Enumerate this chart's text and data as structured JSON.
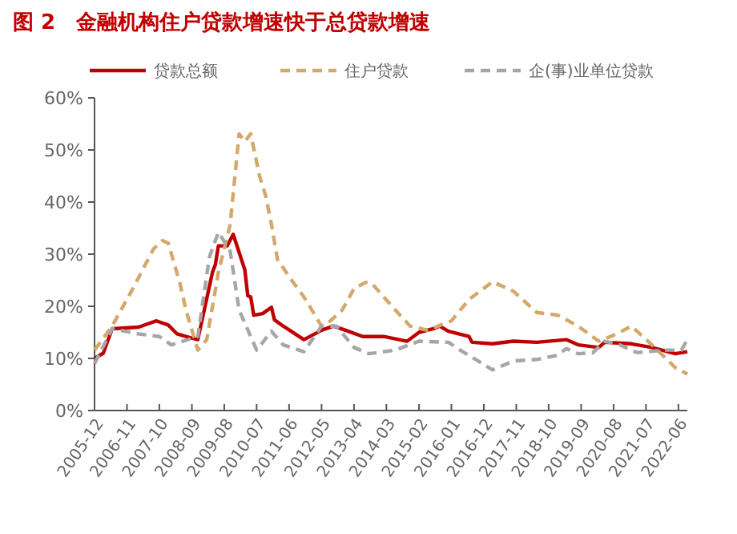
{
  "chart_data": {
    "type": "line",
    "title": "图 2　金融机构住户贷款增速快于总贷款增速",
    "xlim": [
      "2005-12",
      "2022-09"
    ],
    "xticks": [
      "2005-12",
      "2006-11",
      "2007-10",
      "2008-09",
      "2009-08",
      "2010-07",
      "2011-06",
      "2012-05",
      "2013-04",
      "2014-03",
      "2015-02",
      "2016-01",
      "2016-12",
      "2017-11",
      "2018-10",
      "2019-09",
      "2020-08",
      "2021-07",
      "2022-06"
    ],
    "ylim": [
      0,
      60
    ],
    "yticks": [
      {
        "value": 0,
        "label": "0%"
      },
      {
        "value": 10,
        "label": "10%"
      },
      {
        "value": 20,
        "label": "20%"
      },
      {
        "value": 30,
        "label": "30%"
      },
      {
        "value": 40,
        "label": "40%"
      },
      {
        "value": 50,
        "label": "50%"
      },
      {
        "value": 60,
        "label": "60%"
      }
    ],
    "grid": false,
    "legend": "top",
    "series": [
      {
        "name": "贷款总额",
        "color": "#c00000",
        "line_style": "solid",
        "x": [
          "2005-12",
          "2006-03",
          "2006-06",
          "2007-03",
          "2007-09",
          "2008-01",
          "2008-04",
          "2008-07",
          "2008-11",
          "2009-04",
          "2009-05",
          "2009-06",
          "2009-09",
          "2009-11",
          "2010-03",
          "2010-04",
          "2010-05",
          "2010-06",
          "2010-09",
          "2010-12",
          "2011-01",
          "2011-04",
          "2011-11",
          "2012-05",
          "2012-09",
          "2013-02",
          "2013-07",
          "2014-02",
          "2014-10",
          "2015-02",
          "2015-07",
          "2015-09",
          "2015-12",
          "2016-07",
          "2016-08",
          "2017-03",
          "2017-10",
          "2018-06",
          "2019-04",
          "2019-08",
          "2020-03",
          "2020-05",
          "2021-02",
          "2021-09",
          "2022-05",
          "2022-09"
        ],
        "values": [
          10,
          11,
          15.7,
          16,
          17.2,
          16.4,
          14.7,
          14.2,
          13.6,
          26.5,
          28,
          31.6,
          31.6,
          33.8,
          27,
          22,
          21.8,
          18.3,
          18.6,
          19.8,
          17.4,
          16.2,
          13.6,
          15.4,
          16.2,
          15.2,
          14.2,
          14.2,
          13.3,
          15,
          15.7,
          16.2,
          15.2,
          14.2,
          13.1,
          12.8,
          13.3,
          13.1,
          13.6,
          12.6,
          12.1,
          13.1,
          12.8,
          12.1,
          10.9,
          11.3
        ]
      },
      {
        "name": "住户贷款",
        "color": "#d4a86a",
        "line_style": "dashed",
        "x": [
          "2005-12",
          "2006-06",
          "2007-01",
          "2007-08",
          "2007-11",
          "2008-01",
          "2008-05",
          "2008-07",
          "2008-11",
          "2009-02",
          "2009-06",
          "2009-10",
          "2010-01",
          "2010-03",
          "2010-05",
          "2010-08",
          "2010-10",
          "2010-12",
          "2011-02",
          "2011-07",
          "2011-11",
          "2012-05",
          "2012-08",
          "2012-12",
          "2013-04",
          "2013-08",
          "2013-10",
          "2014-06",
          "2014-11",
          "2015-05",
          "2016-01",
          "2016-07",
          "2017-03",
          "2017-10",
          "2018-06",
          "2019-01",
          "2019-08",
          "2020-03",
          "2020-09",
          "2021-02",
          "2021-09",
          "2022-05",
          "2022-09"
        ],
        "values": [
          11.6,
          16.2,
          23.4,
          31,
          32.6,
          32.1,
          24.4,
          19.3,
          11.6,
          13.6,
          26.5,
          35.7,
          53.1,
          51.6,
          53.1,
          44.9,
          41.3,
          35.7,
          29,
          24.9,
          21.8,
          16.2,
          17.2,
          19.3,
          23.4,
          24.6,
          24.4,
          19.3,
          16.2,
          15.4,
          17.2,
          21.3,
          24.7,
          22.9,
          18.8,
          18.3,
          16.2,
          13.3,
          14.7,
          16.2,
          12.6,
          8.2,
          7
        ]
      },
      {
        "name": "企(事)业单位贷款",
        "color": "#a6a6a6",
        "line_style": "dashed",
        "x": [
          "2005-12",
          "2006-06",
          "2007-03",
          "2007-10",
          "2008-02",
          "2008-11",
          "2009-03",
          "2009-06",
          "2009-10",
          "2010-01",
          "2010-05",
          "2010-07",
          "2010-12",
          "2011-04",
          "2011-11",
          "2012-05",
          "2012-10",
          "2013-04",
          "2013-09",
          "2014-06",
          "2015-02",
          "2015-12",
          "2016-04",
          "2017-03",
          "2017-10",
          "2018-06",
          "2019-01",
          "2019-04",
          "2019-08",
          "2020-01",
          "2020-05",
          "2020-10",
          "2021-04",
          "2022-01",
          "2022-07",
          "2022-09"
        ],
        "values": [
          9,
          15.7,
          14.7,
          14.2,
          12.6,
          14.2,
          29.5,
          34.2,
          30.6,
          19.3,
          14.2,
          11.6,
          15.2,
          12.6,
          11.3,
          16.2,
          16.2,
          12.1,
          10.9,
          11.6,
          13.3,
          13.1,
          11.6,
          7.8,
          9.5,
          9.8,
          10.6,
          11.9,
          10.9,
          11.1,
          13.3,
          12.6,
          11.1,
          11.6,
          11.6,
          13.6
        ]
      }
    ]
  }
}
